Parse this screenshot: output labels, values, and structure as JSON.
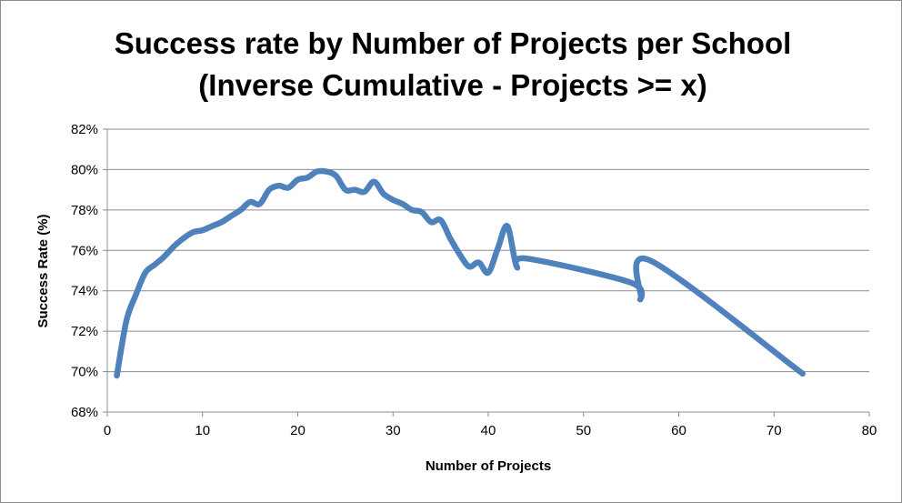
{
  "chart_data": {
    "type": "line",
    "title_lines": [
      "Success rate by Number of Projects per School",
      "(Inverse Cumulative - Projects >= x)"
    ],
    "xlabel": "Number of Projects",
    "ylabel": "Success Rate (%)",
    "xlim": [
      0,
      80
    ],
    "ylim": [
      68,
      82
    ],
    "x_ticks": [
      0,
      10,
      20,
      30,
      40,
      50,
      60,
      70,
      80
    ],
    "y_ticks": [
      68,
      70,
      72,
      74,
      76,
      78,
      80,
      82
    ],
    "y_tick_labels": [
      "68%",
      "70%",
      "72%",
      "74%",
      "76%",
      "78%",
      "80%",
      "82%"
    ],
    "x_tick_labels": [
      "0",
      "10",
      "20",
      "30",
      "40",
      "50",
      "60",
      "70",
      "80"
    ],
    "grid": "horizontal",
    "legend": "none",
    "line_color": "#4f81bd",
    "series": [
      {
        "x": [
          1,
          2,
          3,
          4,
          5,
          6,
          7,
          8,
          9,
          10,
          11,
          12,
          13,
          14,
          15,
          16,
          17,
          18,
          19,
          20,
          21,
          22,
          23,
          24,
          25,
          26,
          27,
          28,
          29,
          30,
          31,
          32,
          33,
          34,
          35,
          36,
          37,
          38,
          39,
          40,
          41,
          42,
          43,
          44,
          55,
          56,
          57,
          73
        ],
        "y": [
          69.8,
          72.5,
          73.8,
          74.9,
          75.3,
          75.7,
          76.2,
          76.6,
          76.9,
          77.0,
          77.2,
          77.4,
          77.7,
          78.0,
          78.4,
          78.3,
          79.0,
          79.2,
          79.1,
          79.5,
          79.6,
          79.9,
          79.9,
          79.7,
          79.0,
          79.0,
          78.9,
          79.4,
          78.8,
          78.5,
          78.3,
          78.0,
          77.9,
          77.4,
          77.5,
          76.6,
          75.8,
          75.2,
          75.4,
          74.9,
          76.1,
          77.2,
          75.2,
          75.6,
          74.4,
          73.6,
          75.5,
          69.9
        ]
      }
    ]
  }
}
